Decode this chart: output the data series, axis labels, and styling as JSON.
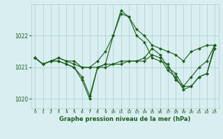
{
  "title": "Graphe pression niveau de la mer (hPa)",
  "background_color": "#d8eef0",
  "grid_color": "#a8cdd0",
  "line_color": "#1a5c1a",
  "marker_color": "#1a5c1a",
  "xlim_min": -0.5,
  "xlim_max": 23.5,
  "ylim": [
    1019.7,
    1023.0
  ],
  "yticks": [
    1020,
    1021,
    1022
  ],
  "xticks": [
    0,
    1,
    2,
    3,
    4,
    5,
    6,
    7,
    8,
    9,
    10,
    11,
    12,
    13,
    14,
    15,
    16,
    17,
    18,
    19,
    20,
    21,
    22,
    23
  ],
  "series": [
    [
      1021.3,
      1021.1,
      1021.2,
      1021.3,
      1021.2,
      1021.2,
      1021.0,
      1021.0,
      1021.2,
      1021.5,
      1022.0,
      1022.8,
      1022.6,
      1022.2,
      1022.0,
      1021.7,
      1021.6,
      1021.5,
      1021.4,
      1021.2,
      1021.5,
      1021.6,
      1021.7,
      1021.7
    ],
    [
      1021.3,
      1021.1,
      1021.2,
      1021.2,
      1021.1,
      1021.0,
      1020.6,
      1020.0,
      1021.0,
      1021.1,
      1022.0,
      1022.7,
      1022.6,
      1022.0,
      1021.8,
      1021.3,
      1021.2,
      1021.1,
      1020.6,
      1020.4,
      1020.7,
      1021.0,
      1021.2,
      1021.7
    ],
    [
      1021.3,
      1021.1,
      1021.2,
      1021.2,
      1021.1,
      1021.0,
      1020.7,
      1020.1,
      1021.0,
      1021.1,
      1021.1,
      1021.2,
      1021.2,
      1021.2,
      1021.3,
      1021.6,
      1021.4,
      1021.0,
      1020.8,
      1020.4,
      1020.4,
      1020.7,
      1020.8,
      1021.6
    ],
    [
      1021.3,
      1021.1,
      1021.2,
      1021.3,
      1021.2,
      1021.1,
      1021.0,
      1021.0,
      1021.0,
      1021.0,
      1021.1,
      1021.1,
      1021.2,
      1021.2,
      1021.2,
      1021.4,
      1021.3,
      1020.9,
      1020.7,
      1020.3,
      1020.4,
      1020.7,
      1020.8,
      1021.7
    ]
  ]
}
